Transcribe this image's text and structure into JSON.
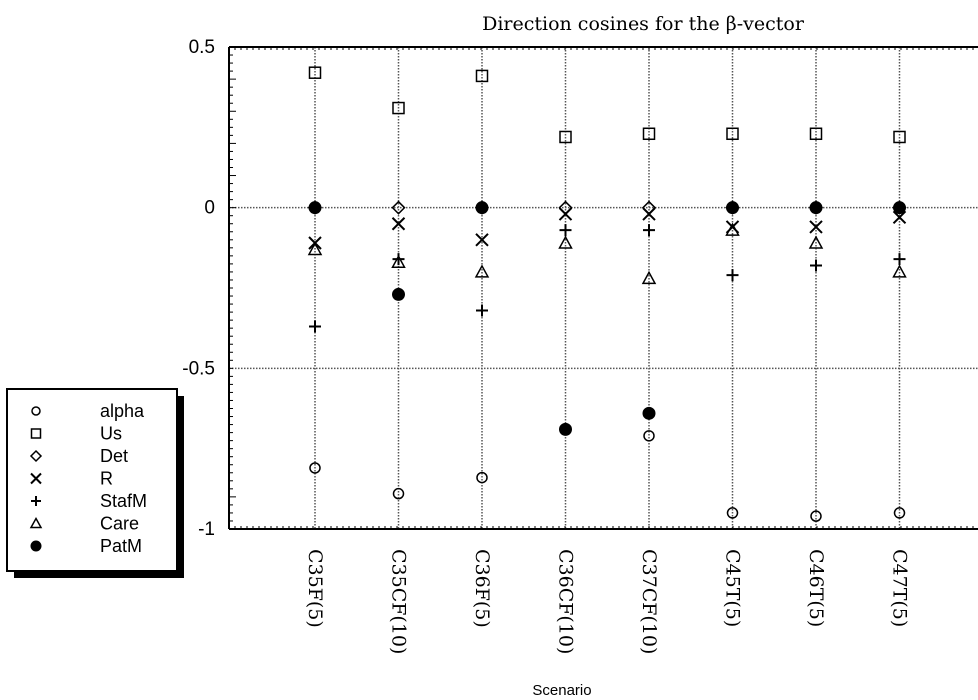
{
  "chart_data": {
    "type": "scatter",
    "title": "Direction cosines for the β-vector",
    "xlabel": "Scenario",
    "ylabel": "",
    "ylim": [
      -1,
      0.5
    ],
    "yticks": [
      0.5,
      0,
      -0.5,
      -1
    ],
    "ytick_labels": [
      "0.5",
      "0",
      "-0.5",
      "-1"
    ],
    "grid": true,
    "legend_position": "bottom-left",
    "categories": [
      "C35F(5)",
      "C35CF(10)",
      "C36F(5)",
      "C36CF(10)",
      "C37CF(10)",
      "C45T(5)",
      "C46T(5)",
      "C47T(5)"
    ],
    "series": [
      {
        "name": "alpha",
        "marker": "circle-open",
        "values": [
          -0.81,
          -0.89,
          -0.84,
          null,
          -0.71,
          -0.95,
          -0.96,
          -0.95
        ]
      },
      {
        "name": "Us",
        "marker": "square-open",
        "values": [
          0.42,
          0.31,
          0.41,
          0.22,
          0.23,
          0.23,
          0.23,
          0.22
        ]
      },
      {
        "name": "Det",
        "marker": "diamond-open",
        "values": [
          0.0,
          0.0,
          0.0,
          0.0,
          0.0,
          0.0,
          0.0,
          0.0
        ]
      },
      {
        "name": "R",
        "marker": "x",
        "values": [
          -0.11,
          -0.05,
          -0.1,
          -0.02,
          -0.02,
          -0.06,
          -0.06,
          -0.03
        ]
      },
      {
        "name": "StafM",
        "marker": "plus",
        "values": [
          -0.37,
          -0.16,
          -0.32,
          -0.07,
          -0.07,
          -0.21,
          -0.18,
          -0.16
        ]
      },
      {
        "name": "Care",
        "marker": "triangle-open",
        "values": [
          -0.13,
          -0.17,
          -0.2,
          -0.11,
          -0.22,
          -0.07,
          -0.11,
          -0.2
        ]
      },
      {
        "name": "PatM",
        "marker": "circle-filled",
        "values": [
          0.0,
          -0.27,
          0.0,
          -0.69,
          -0.64,
          0.0,
          0.0,
          0.0
        ]
      }
    ]
  }
}
